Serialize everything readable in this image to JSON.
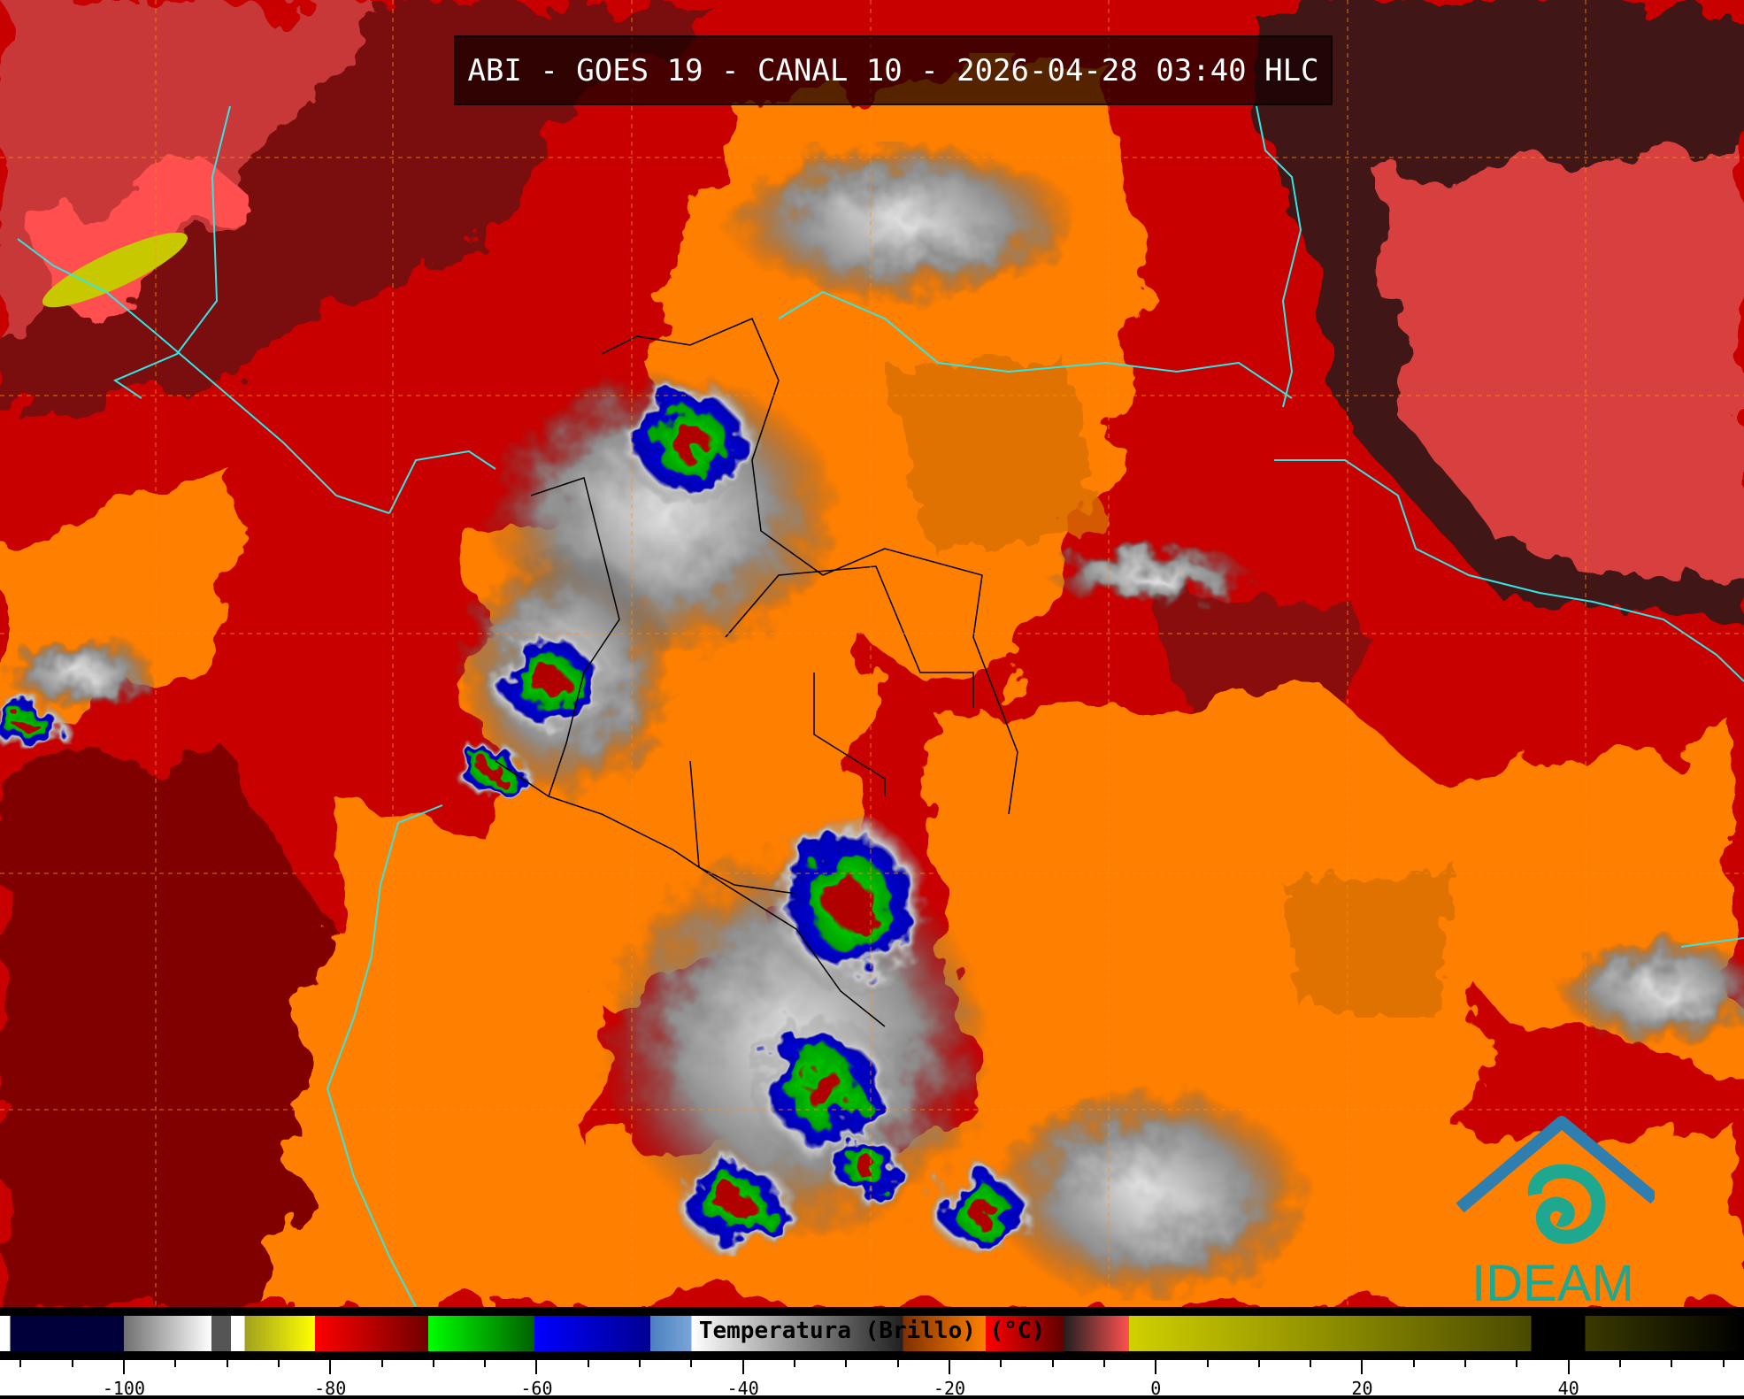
{
  "title": "ABI - GOES 19 - CANAL 10 - 2026-04-28 03:40 HLC",
  "colorbar": {
    "label": "Temperatura (Brillo) (°C)",
    "range_c": [
      -112,
      57
    ],
    "ticks": [
      -100,
      -80,
      -60,
      -40,
      -20,
      0,
      20,
      40
    ],
    "minor_tick_step": 5,
    "stops": [
      {
        "t": -112,
        "c": "#ffffff"
      },
      {
        "t": -111,
        "c": "#ffffff"
      },
      {
        "t": -111,
        "c": "#00003a"
      },
      {
        "t": -100,
        "c": "#00003a"
      },
      {
        "t": -100,
        "c": "#707070"
      },
      {
        "t": -91.5,
        "c": "#ffffff"
      },
      {
        "t": -91.5,
        "c": "#555555"
      },
      {
        "t": -89.6,
        "c": "#555555"
      },
      {
        "t": -89.6,
        "c": "#ffffff"
      },
      {
        "t": -88.3,
        "c": "#ffffff"
      },
      {
        "t": -88.3,
        "c": "#a0a020"
      },
      {
        "t": -81.5,
        "c": "#ffff00"
      },
      {
        "t": -81.5,
        "c": "#ff0000"
      },
      {
        "t": -70.5,
        "c": "#700000"
      },
      {
        "t": -70.5,
        "c": "#00ff00"
      },
      {
        "t": -60.2,
        "c": "#006000"
      },
      {
        "t": -60.2,
        "c": "#0000ff"
      },
      {
        "t": -49,
        "c": "#000090"
      },
      {
        "t": -49,
        "c": "#4a7fc0"
      },
      {
        "t": -45,
        "c": "#7aa6d8"
      },
      {
        "t": -45,
        "c": "#ffffff"
      },
      {
        "t": -24.5,
        "c": "#202020"
      },
      {
        "t": -24.5,
        "c": "#803000"
      },
      {
        "t": -16.5,
        "c": "#ff8000"
      },
      {
        "t": -16.5,
        "c": "#ff0000"
      },
      {
        "t": -8.9,
        "c": "#600000"
      },
      {
        "t": -8.9,
        "c": "#202020"
      },
      {
        "t": -2.6,
        "c": "#ff5050"
      },
      {
        "t": -2.6,
        "c": "#d0d000"
      },
      {
        "t": 36.4,
        "c": "#4a4a00"
      },
      {
        "t": 36.4,
        "c": "#000000"
      },
      {
        "t": 41.6,
        "c": "#000000"
      },
      {
        "t": 41.6,
        "c": "#3a3a00"
      },
      {
        "t": 57,
        "c": "#000000"
      }
    ]
  },
  "logo": {
    "text": "IDEAM",
    "color": "#1fa890",
    "roof_color": "#2e7fb0"
  },
  "map": {
    "coastline_color": "#33e6e6",
    "border_color": "#000000",
    "grid_color": "#ff8c1a"
  }
}
